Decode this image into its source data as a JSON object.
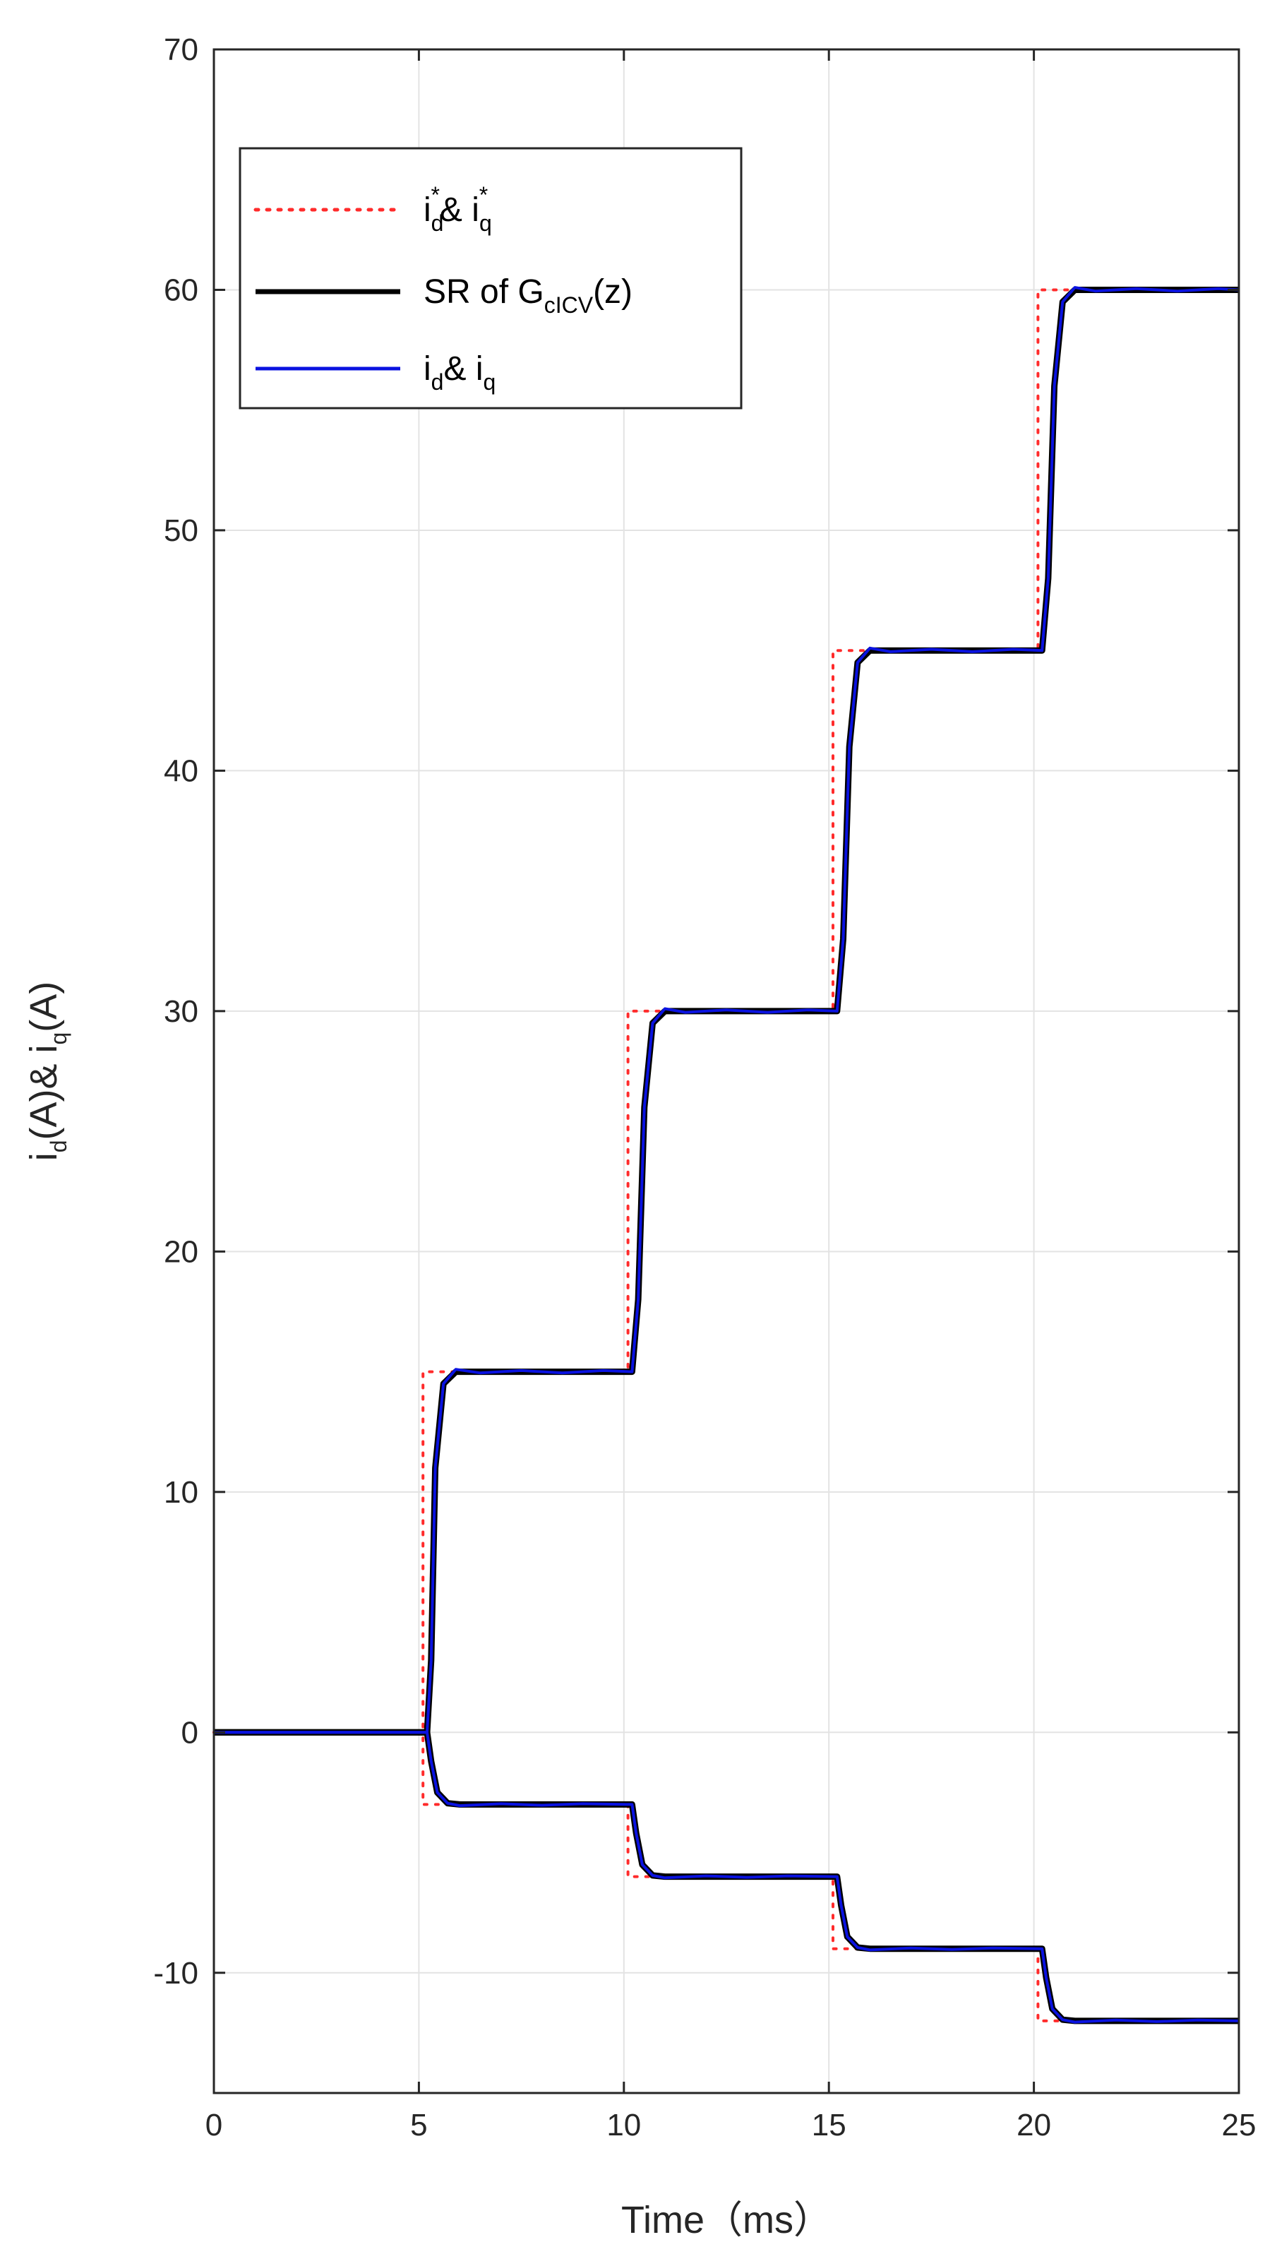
{
  "chart_data": {
    "type": "line",
    "xlabel": "Time（ms）",
    "ylabel": {
      "parts": [
        "i",
        "d",
        "(A)& i",
        "q",
        "(A)"
      ]
    },
    "xlim": [
      0,
      25
    ],
    "ylim": [
      -15,
      70
    ],
    "x_ticks": [
      0,
      5,
      10,
      15,
      20,
      25
    ],
    "y_ticks": [
      -10,
      0,
      10,
      20,
      30,
      40,
      50,
      60,
      70
    ],
    "grid": true,
    "legend_position": "top-left",
    "legend": [
      {
        "parts": [
          "i",
          "d",
          "*",
          "& i",
          "q",
          "*"
        ]
      },
      {
        "parts": [
          "SR of G",
          "cICV",
          "(z)"
        ]
      },
      {
        "parts": [
          "i",
          "d",
          "& i",
          "q"
        ]
      }
    ],
    "colors": {
      "reference": "#ff2b2b",
      "sr": "#000000",
      "measured": "#0a12e0"
    },
    "series": [
      {
        "name": "reference_q",
        "style": "dotted",
        "x": [
          0,
          5.1,
          5.1,
          10.1,
          10.1,
          15.1,
          15.1,
          20.1,
          20.1,
          25
        ],
        "y": [
          0,
          0,
          15,
          15,
          30,
          30,
          45,
          45,
          60,
          60
        ]
      },
      {
        "name": "reference_d",
        "style": "dotted",
        "x": [
          0,
          5.1,
          5.1,
          10.1,
          10.1,
          15.1,
          15.1,
          20.1,
          20.1,
          25
        ],
        "y": [
          0,
          0,
          -3,
          -3,
          -6,
          -6,
          -9,
          -9,
          -12,
          -12
        ]
      },
      {
        "name": "sr_q",
        "style": "solid",
        "x": [
          0,
          5.2,
          5.3,
          5.4,
          5.6,
          5.9,
          10.2,
          10.35,
          10.5,
          10.7,
          11.0,
          15.2,
          15.35,
          15.5,
          15.7,
          16.0,
          20.2,
          20.35,
          20.5,
          20.7,
          21.0,
          25
        ],
        "y": [
          0,
          0,
          3,
          11,
          14.5,
          15,
          15,
          18,
          26,
          29.5,
          30,
          30,
          33,
          41,
          44.5,
          45,
          45,
          48,
          56,
          59.5,
          60,
          60
        ]
      },
      {
        "name": "sr_d",
        "style": "solid",
        "x": [
          0,
          5.2,
          5.3,
          5.45,
          5.7,
          6.0,
          10.2,
          10.3,
          10.45,
          10.7,
          11.0,
          15.2,
          15.3,
          15.45,
          15.7,
          16.0,
          20.2,
          20.3,
          20.45,
          20.7,
          21.0,
          25
        ],
        "y": [
          0,
          0,
          -1.2,
          -2.5,
          -2.95,
          -3,
          -3,
          -4.2,
          -5.5,
          -5.95,
          -6,
          -6,
          -7.2,
          -8.5,
          -8.95,
          -9,
          -9,
          -10.2,
          -11.5,
          -11.95,
          -12,
          -12
        ]
      },
      {
        "name": "measured_q",
        "style": "solid",
        "x": [
          0,
          5.2,
          5.3,
          5.4,
          5.6,
          5.9,
          6.5,
          7.5,
          8.5,
          9.5,
          10.2,
          10.35,
          10.5,
          10.7,
          11.0,
          11.5,
          12.5,
          13.5,
          14.5,
          15.2,
          15.35,
          15.5,
          15.7,
          16.0,
          16.5,
          17.5,
          18.5,
          19.5,
          20.2,
          20.35,
          20.5,
          20.7,
          21.0,
          21.5,
          22.5,
          23.5,
          24.5,
          25
        ],
        "y": [
          0,
          0,
          3,
          11,
          14.5,
          15.1,
          14.95,
          15.05,
          14.95,
          15.05,
          15,
          18,
          26,
          29.5,
          30.1,
          29.95,
          30.05,
          29.95,
          30.05,
          30,
          33,
          41,
          44.5,
          45.1,
          44.95,
          45.05,
          44.95,
          45.05,
          45,
          48,
          56,
          59.5,
          60.1,
          59.95,
          60.05,
          59.95,
          60.05,
          60
        ]
      },
      {
        "name": "measured_d",
        "style": "solid",
        "x": [
          0,
          5.2,
          5.3,
          5.45,
          5.7,
          6.0,
          7.0,
          8.0,
          9.0,
          10.2,
          10.3,
          10.45,
          10.7,
          11.0,
          12.0,
          13.0,
          14.0,
          15.2,
          15.3,
          15.45,
          15.7,
          16.0,
          17.0,
          18.0,
          19.0,
          20.2,
          20.3,
          20.45,
          20.7,
          21.0,
          22.0,
          23.0,
          24.0,
          25
        ],
        "y": [
          0,
          0,
          -1.2,
          -2.5,
          -2.95,
          -3.05,
          -2.97,
          -3.03,
          -2.97,
          -3,
          -4.2,
          -5.5,
          -5.95,
          -6.05,
          -5.97,
          -6.03,
          -5.97,
          -6,
          -7.2,
          -8.5,
          -8.95,
          -9.05,
          -8.97,
          -9.03,
          -8.97,
          -9,
          -10.2,
          -11.5,
          -11.95,
          -12.05,
          -11.97,
          -12.03,
          -11.97,
          -12
        ]
      }
    ]
  }
}
